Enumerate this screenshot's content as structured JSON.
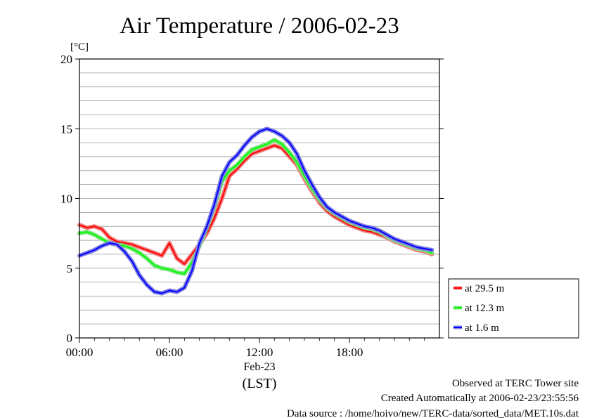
{
  "chart_data": {
    "type": "line",
    "title": "Air Temperature / 2006-02-23",
    "ylabel": "[°C]",
    "xlabel": "(LST)",
    "x_date_label": "Feb-23",
    "ylim": [
      0,
      20
    ],
    "xlim": [
      0,
      24
    ],
    "yticks": [
      "0",
      "5",
      "10",
      "15",
      "20"
    ],
    "yticks_values": [
      0,
      5,
      10,
      15,
      20
    ],
    "xticks": [
      "00:00",
      "06:00",
      "12:00",
      "18:00"
    ],
    "xticks_values": [
      0,
      6,
      12,
      18
    ],
    "grid": true,
    "legend_position": "right",
    "x": [
      0,
      0.5,
      1,
      1.5,
      2,
      2.5,
      3,
      3.5,
      4,
      4.5,
      5,
      5.5,
      6,
      6.5,
      7,
      7.5,
      8,
      8.5,
      9,
      9.5,
      10,
      10.5,
      11,
      11.5,
      12,
      12.5,
      13,
      13.5,
      14,
      14.5,
      15,
      15.5,
      16,
      16.5,
      17,
      17.5,
      18,
      18.5,
      19,
      19.5,
      20,
      20.5,
      21,
      21.5,
      22,
      22.5,
      23,
      23.5
    ],
    "series": [
      {
        "name": "at 29.5 m",
        "color": "#ff0000",
        "halo": "#f08080",
        "values": [
          8.1,
          7.9,
          8.0,
          7.8,
          7.2,
          6.9,
          6.8,
          6.7,
          6.5,
          6.3,
          6.1,
          5.9,
          6.8,
          5.7,
          5.3,
          6.0,
          6.7,
          7.5,
          8.6,
          10.0,
          11.6,
          12.1,
          12.7,
          13.2,
          13.4,
          13.6,
          13.8,
          13.6,
          13.0,
          12.4,
          11.4,
          10.5,
          9.7,
          9.1,
          8.7,
          8.4,
          8.1,
          7.9,
          7.7,
          7.6,
          7.4,
          7.2,
          6.9,
          6.7,
          6.5,
          6.3,
          6.2,
          6.0
        ]
      },
      {
        "name": "at 12.3 m",
        "color": "#00ff00",
        "halo": "#80e080",
        "values": [
          7.5,
          7.6,
          7.4,
          7.1,
          6.8,
          6.7,
          6.6,
          6.4,
          6.1,
          5.7,
          5.2,
          5.0,
          4.9,
          4.7,
          4.6,
          5.4,
          6.6,
          7.9,
          9.4,
          11.2,
          12.0,
          12.4,
          13.0,
          13.5,
          13.7,
          13.9,
          14.2,
          13.9,
          13.3,
          12.6,
          11.6,
          10.7,
          9.9,
          9.3,
          8.9,
          8.6,
          8.3,
          8.1,
          7.9,
          7.8,
          7.6,
          7.3,
          7.0,
          6.8,
          6.6,
          6.4,
          6.3,
          6.1
        ]
      },
      {
        "name": "at 1.6 m",
        "color": "#0000ff",
        "halo": "#8080e0",
        "values": [
          5.9,
          6.1,
          6.3,
          6.6,
          6.8,
          6.7,
          6.2,
          5.5,
          4.5,
          3.8,
          3.3,
          3.2,
          3.4,
          3.3,
          3.6,
          4.8,
          6.8,
          8.0,
          9.6,
          11.6,
          12.6,
          13.1,
          13.8,
          14.4,
          14.8,
          15.0,
          14.8,
          14.5,
          14.0,
          13.2,
          12.0,
          11.0,
          10.1,
          9.4,
          9.0,
          8.7,
          8.4,
          8.2,
          8.0,
          7.9,
          7.7,
          7.4,
          7.1,
          6.9,
          6.7,
          6.5,
          6.4,
          6.3
        ]
      }
    ],
    "annotations": [
      "Observed at TERC Tower site",
      "Created Automatically at 2006-02-23/23:55:56",
      "Data source : /home/hoivo/new/TERC-data/sorted_data/MET.10s.dat"
    ]
  }
}
